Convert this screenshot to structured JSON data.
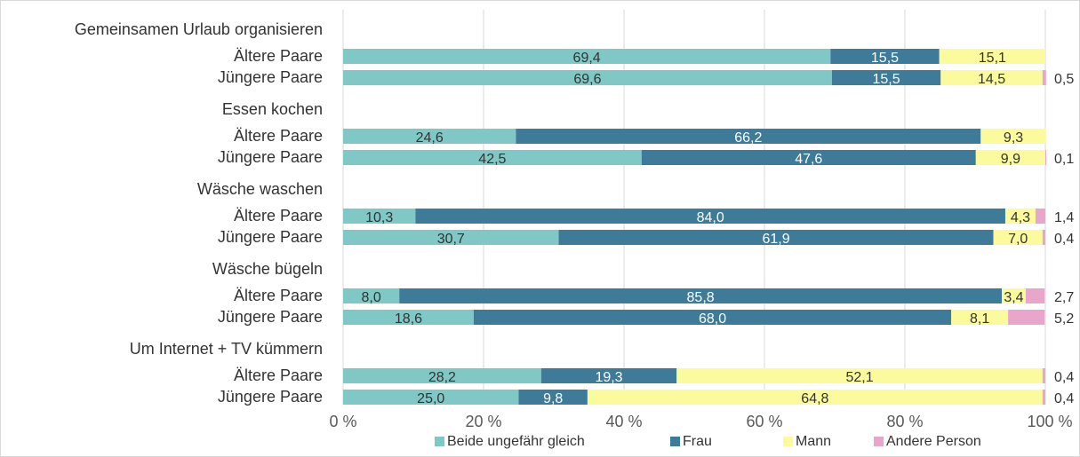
{
  "chart_data": {
    "type": "bar",
    "orientation": "horizontal",
    "stacked": true,
    "xlim": [
      0,
      100
    ],
    "x_ticks": [
      "0 %",
      "20 %",
      "40 %",
      "60 %",
      "80 %",
      "100 %"
    ],
    "grid": true,
    "legend_position": "bottom",
    "series": [
      {
        "name": "Beide ungefähr gleich",
        "color": "#7fc8c6"
      },
      {
        "name": "Frau",
        "color": "#3e7b99"
      },
      {
        "name": "Mann",
        "color": "#fbfb9d"
      },
      {
        "name": "Andere Person",
        "color": "#e8a6cb"
      }
    ],
    "groups": [
      {
        "title": "Gemeinsamen Urlaub organisieren",
        "rows": [
          {
            "label": "Ältere Paare",
            "values": [
              69.4,
              15.5,
              15.1,
              0
            ],
            "labels": [
              "69,4",
              "15,5",
              "15,1",
              ""
            ]
          },
          {
            "label": "Jüngere Paare",
            "values": [
              69.6,
              15.5,
              14.5,
              0.5
            ],
            "labels": [
              "69,6",
              "15,5",
              "14,5",
              "0,5"
            ]
          }
        ]
      },
      {
        "title": "Essen kochen",
        "rows": [
          {
            "label": "Ältere Paare",
            "values": [
              24.6,
              66.2,
              9.3,
              0
            ],
            "labels": [
              "24,6",
              "66,2",
              "9,3",
              ""
            ]
          },
          {
            "label": "Jüngere Paare",
            "values": [
              42.5,
              47.6,
              9.9,
              0.1
            ],
            "labels": [
              "42,5",
              "47,6",
              "9,9",
              "0,1"
            ]
          }
        ]
      },
      {
        "title": "Wäsche waschen",
        "rows": [
          {
            "label": "Ältere Paare",
            "values": [
              10.3,
              84.0,
              4.3,
              1.4
            ],
            "labels": [
              "10,3",
              "84,0",
              "4,3",
              "1,4"
            ]
          },
          {
            "label": "Jüngere Paare",
            "values": [
              30.7,
              61.9,
              7.0,
              0.4
            ],
            "labels": [
              "30,7",
              "61,9",
              "7,0",
              "0,4"
            ]
          }
        ]
      },
      {
        "title": "Wäsche bügeln",
        "rows": [
          {
            "label": "Ältere Paare",
            "values": [
              8.0,
              85.8,
              3.4,
              2.7
            ],
            "labels": [
              "8,0",
              "85,8",
              "3,4",
              "2,7"
            ]
          },
          {
            "label": "Jüngere Paare",
            "values": [
              18.6,
              68.0,
              8.1,
              5.2
            ],
            "labels": [
              "18,6",
              "68,0",
              "8,1",
              "5,2"
            ]
          }
        ]
      },
      {
        "title": "Um Internet + TV kümmern",
        "rows": [
          {
            "label": "Ältere Paare",
            "values": [
              28.2,
              19.3,
              52.1,
              0.4
            ],
            "labels": [
              "28,2",
              "19,3",
              "52,1",
              "0,4"
            ]
          },
          {
            "label": "Jüngere Paare",
            "values": [
              25.0,
              9.8,
              64.8,
              0.4
            ],
            "labels": [
              "25,0",
              "9,8",
              "64,8",
              "0,4"
            ]
          }
        ]
      }
    ]
  }
}
